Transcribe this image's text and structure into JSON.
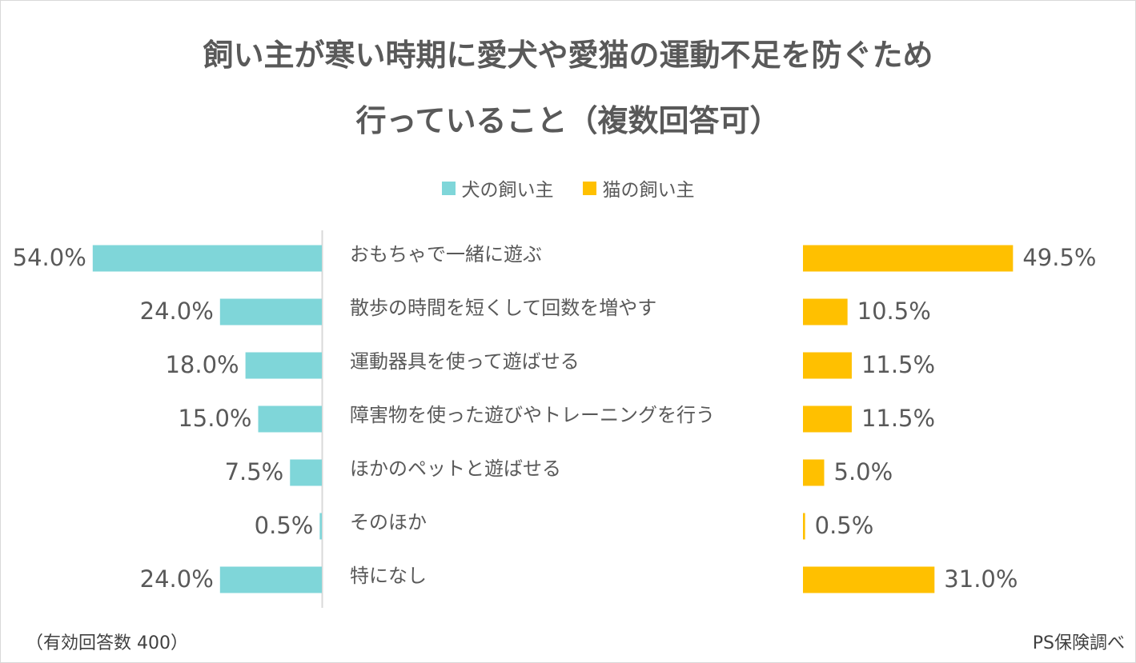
{
  "chart_data": {
    "type": "bar",
    "title": "飼い主が寒い時期に愛犬や愛猫の運動不足を防ぐため",
    "title_line2": "行っていること（複数回答可）",
    "categories": [
      "おもちゃで一緒に遊ぶ",
      "散歩の時間を短くして回数を増やす",
      "運動器具を使って遊ばせる",
      "障害物を使った遊びやトレーニングを行う",
      "ほかのペットと遊ばせる",
      "そのほか",
      "特になし"
    ],
    "series": [
      {
        "name": "犬の飼い主",
        "values": [
          54.0,
          24.0,
          18.0,
          15.0,
          7.5,
          0.5,
          24.0
        ],
        "labels": [
          "54.0%",
          "24.0%",
          "18.0%",
          "15.0%",
          "7.5%",
          "0.5%",
          "24.0%"
        ],
        "color": "#7fd6d9"
      },
      {
        "name": "猫の飼い主",
        "values": [
          49.5,
          10.5,
          11.5,
          11.5,
          5.0,
          0.5,
          31.0
        ],
        "labels": [
          "49.5%",
          "10.5%",
          "11.5%",
          "11.5%",
          "5.0%",
          "0.5%",
          "31.0%"
        ],
        "color": "#ffc000"
      }
    ],
    "legend_position": "top-center",
    "grid": false,
    "text_color": "#595959",
    "axis_color": "#d9d9d9"
  },
  "note": "（有効回答数 400）",
  "source": "PS保険調べ"
}
